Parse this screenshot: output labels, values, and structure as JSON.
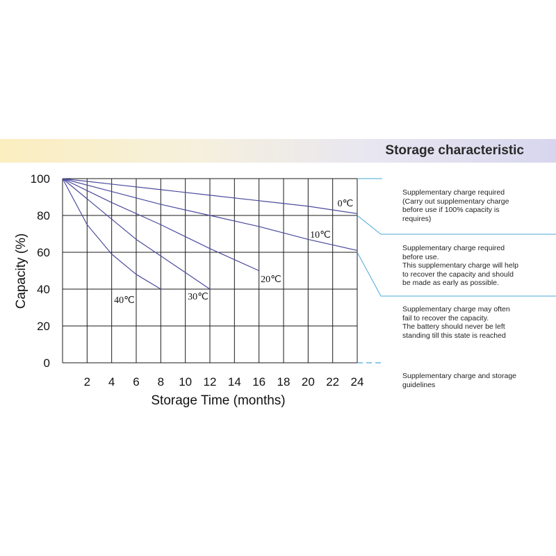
{
  "header": {
    "title": "Storage characteristic"
  },
  "chart_data": {
    "type": "line",
    "title": "Storage characteristic",
    "xlabel": "Storage Time (months)",
    "ylabel": "Capacity  (%)",
    "xlim": [
      0,
      24
    ],
    "ylim": [
      0,
      100
    ],
    "x_ticks": [
      2,
      4,
      6,
      8,
      10,
      12,
      14,
      16,
      18,
      20,
      22,
      24
    ],
    "y_ticks": [
      0,
      20,
      40,
      60,
      80,
      100
    ],
    "grid": true,
    "line_color": "#4a4a9c",
    "series": [
      {
        "name": "0℃",
        "x": [
          0,
          4,
          8,
          12,
          16,
          20,
          24
        ],
        "y": [
          100,
          97,
          94,
          91,
          88,
          85,
          81
        ]
      },
      {
        "name": "10℃",
        "x": [
          0,
          4,
          8,
          12,
          16,
          20,
          24
        ],
        "y": [
          100,
          93,
          86,
          80,
          74,
          67,
          61
        ]
      },
      {
        "name": "20℃",
        "x": [
          0,
          4,
          8,
          12,
          16
        ],
        "y": [
          100,
          87,
          75,
          62,
          50
        ]
      },
      {
        "name": "30℃",
        "x": [
          0,
          2,
          4,
          6,
          8,
          10,
          12
        ],
        "y": [
          100,
          89,
          78,
          67,
          58,
          49,
          40
        ]
      },
      {
        "name": "40℃",
        "x": [
          0,
          2,
          4,
          6,
          8
        ],
        "y": [
          100,
          75,
          59,
          48,
          40
        ]
      }
    ]
  },
  "notes": [
    "Supplementary charge required\n(Carry out supplementary charge\nbefore use if 100% capacity is\nrequires)",
    "Supplementary charge required\nbefore use.\nThis supplementary charge will help\nto recover the capacity and should\nbe made  as early as possible.",
    "Supplementary charge may often\nfail to recover the capacity.\nThe battery should never be left\nstanding till this state is reached",
    "Supplementary charge and storage\nguidelines"
  ],
  "colors": {
    "grid": "#1a1a1a",
    "curve": "#4a4a9c",
    "guide": "#4aa7d8"
  }
}
